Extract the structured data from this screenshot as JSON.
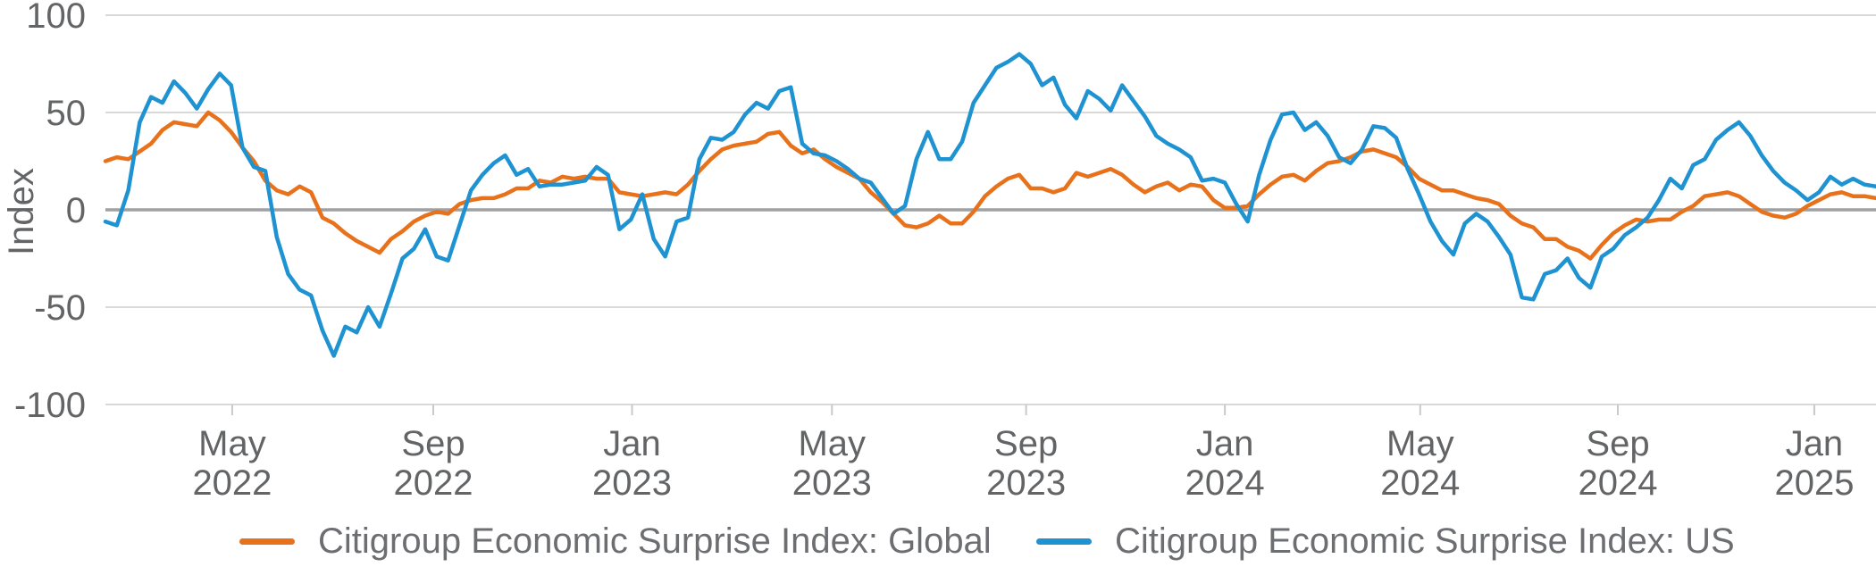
{
  "chart_data": {
    "type": "line",
    "title": "",
    "ylabel": "Index",
    "ylim": [
      -100,
      100
    ],
    "yticks": [
      100,
      50,
      0,
      -50,
      -100
    ],
    "grid": true,
    "legend_position": "bottom",
    "x_axis": {
      "tick_labels": [
        [
          "May",
          "2022"
        ],
        [
          "Sep",
          "2022"
        ],
        [
          "Jan",
          "2023"
        ],
        [
          "May",
          "2023"
        ],
        [
          "Sep",
          "2023"
        ],
        [
          "Jan",
          "2024"
        ],
        [
          "May",
          "2024"
        ],
        [
          "Sep",
          "2024"
        ],
        [
          "Jan",
          "2025"
        ]
      ],
      "tick_positions_week_index": [
        11.1,
        28.7,
        46.1,
        63.6,
        80.6,
        98.0,
        115.1,
        132.4,
        149.6
      ],
      "start": "Feb 2022",
      "end": "Feb 2025",
      "frequency": "weekly"
    },
    "series": [
      {
        "name": "Citigroup Economic Surprise Index: Global",
        "color": "#e8721c",
        "values": [
          25,
          27,
          26,
          30,
          34,
          41,
          45,
          44,
          43,
          50,
          46,
          40,
          32,
          25,
          15,
          10,
          8,
          12,
          9,
          -4,
          -7,
          -12,
          -16,
          -19,
          -22,
          -15,
          -11,
          -6,
          -3,
          -1,
          -2,
          3,
          5,
          6,
          6,
          8,
          11,
          11,
          15,
          14,
          17,
          16,
          17,
          16,
          16,
          9,
          8,
          7,
          8,
          9,
          8,
          13,
          20,
          26,
          31,
          33,
          34,
          35,
          39,
          40,
          33,
          29,
          31,
          26,
          22,
          19,
          16,
          9,
          4,
          -2,
          -8,
          -9,
          -7,
          -3,
          -7,
          -7,
          -1,
          7,
          12,
          16,
          18,
          11,
          11,
          9,
          11,
          19,
          17,
          19,
          21,
          18,
          13,
          9,
          12,
          14,
          10,
          13,
          12,
          5,
          1,
          1,
          2,
          8,
          13,
          17,
          18,
          15,
          20,
          24,
          25,
          27,
          30,
          31,
          29,
          27,
          22,
          16,
          13,
          10,
          10,
          8,
          6,
          5,
          3,
          -3,
          -7,
          -9,
          -15,
          -15,
          -19,
          -21,
          -25,
          -18,
          -12,
          -8,
          -5,
          -6,
          -5,
          -5,
          -1,
          2,
          7,
          8,
          9,
          7,
          3,
          -1,
          -3,
          -4,
          -2,
          2,
          5,
          8,
          9,
          7,
          7,
          6
        ]
      },
      {
        "name": "Citigroup Economic Surprise Index: US",
        "color": "#1f93d2",
        "values": [
          -6,
          -8,
          10,
          45,
          58,
          55,
          66,
          60,
          52,
          62,
          70,
          64,
          32,
          22,
          20,
          -14,
          -33,
          -41,
          -44,
          -62,
          -75,
          -60,
          -63,
          -50,
          -60,
          -43,
          -25,
          -20,
          -10,
          -24,
          -26,
          -8,
          10,
          18,
          24,
          28,
          18,
          21,
          12,
          13,
          13,
          14,
          15,
          22,
          18,
          -10,
          -5,
          8,
          -15,
          -24,
          -6,
          -4,
          26,
          37,
          36,
          40,
          49,
          55,
          52,
          61,
          63,
          34,
          29,
          28,
          25,
          21,
          16,
          14,
          6,
          -2,
          2,
          26,
          40,
          26,
          26,
          35,
          55,
          64,
          73,
          76,
          80,
          75,
          64,
          68,
          54,
          47,
          61,
          57,
          51,
          64,
          56,
          48,
          38,
          34,
          31,
          27,
          15,
          16,
          14,
          3,
          -6,
          18,
          36,
          49,
          50,
          41,
          45,
          38,
          27,
          24,
          31,
          43,
          42,
          37,
          21,
          8,
          -6,
          -16,
          -23,
          -7,
          -2,
          -6,
          -14,
          -23,
          -45,
          -46,
          -33,
          -31,
          -25,
          -35,
          -40,
          -24,
          -20,
          -13,
          -9,
          -4,
          5,
          16,
          11,
          23,
          26,
          36,
          41,
          45,
          38,
          28,
          20,
          14,
          10,
          5,
          9,
          17,
          13,
          16,
          13,
          12
        ]
      }
    ],
    "colors": {
      "grid_line": "#d9d9da",
      "zero_line": "#9fa0a2",
      "tick_mark": "#c8c9ca",
      "axis_text": "#636466",
      "legend_text": "#6d6e71"
    }
  }
}
